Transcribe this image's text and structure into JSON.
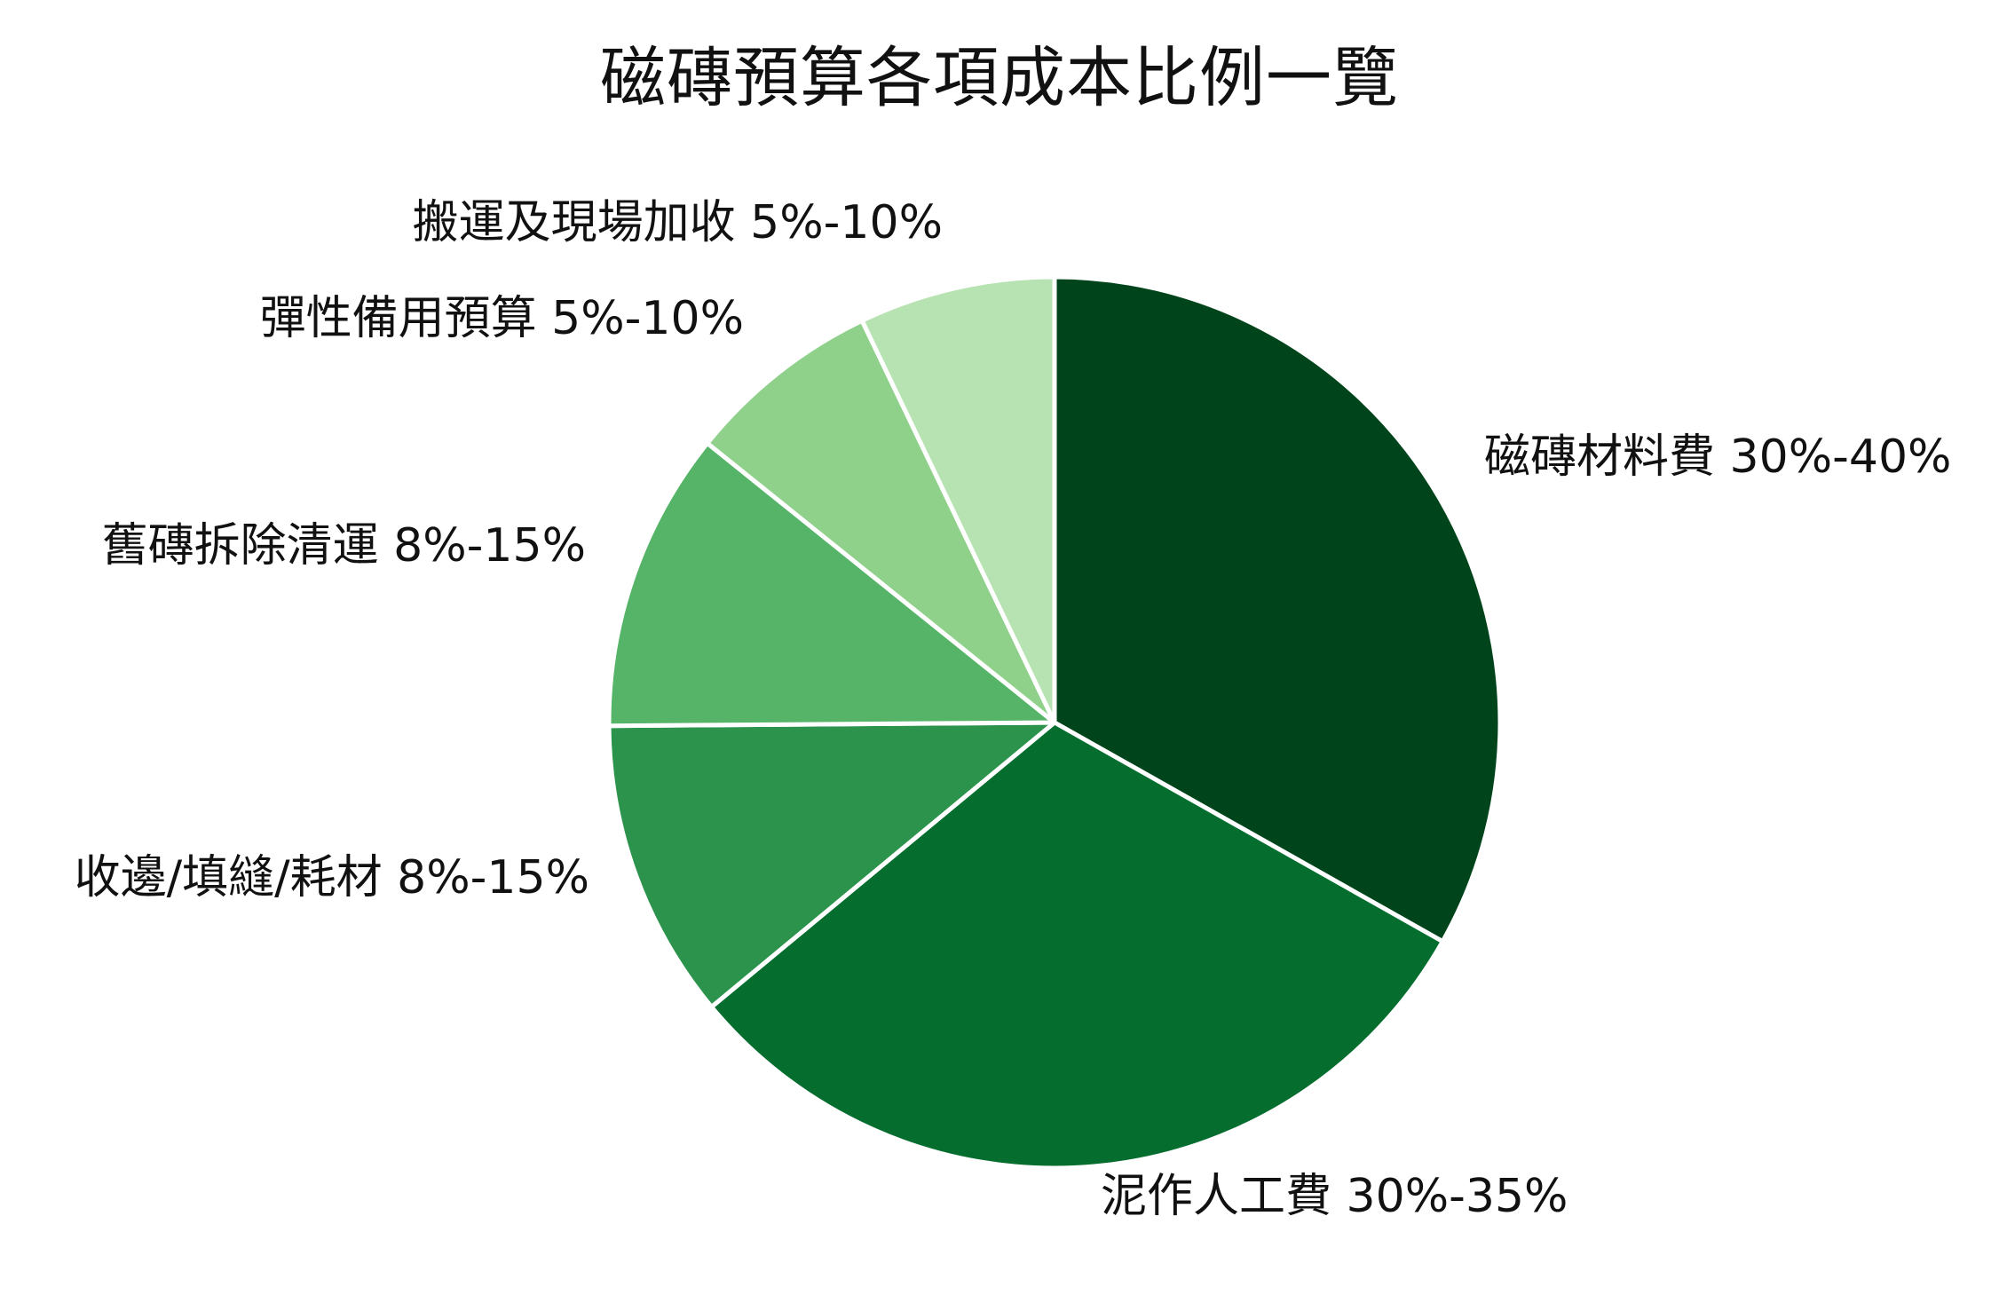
{
  "chart_data": {
    "type": "pie",
    "title": "磁磚預算各項成本比例一覽",
    "start_angle_deg": 90,
    "direction": "clockwise",
    "legend": "none",
    "slices": [
      {
        "label": "磁磚材料費 30%-40%",
        "value": 35,
        "color": "#00441b"
      },
      {
        "label": "泥作人工費 30%-35%",
        "value": 32.5,
        "color": "#056e2f"
      },
      {
        "label": "收邊/填縫/耗材 8%-15%",
        "value": 11.5,
        "color": "#2c934c"
      },
      {
        "label": "舊磚拆除清運 8%-15%",
        "value": 11.5,
        "color": "#55b467"
      },
      {
        "label": "彈性備用預算 5%-10%",
        "value": 7.5,
        "color": "#8fd08b"
      },
      {
        "label": "搬運及現場加收 5%-10%",
        "value": 7.5,
        "color": "#b7e3b2"
      }
    ]
  }
}
